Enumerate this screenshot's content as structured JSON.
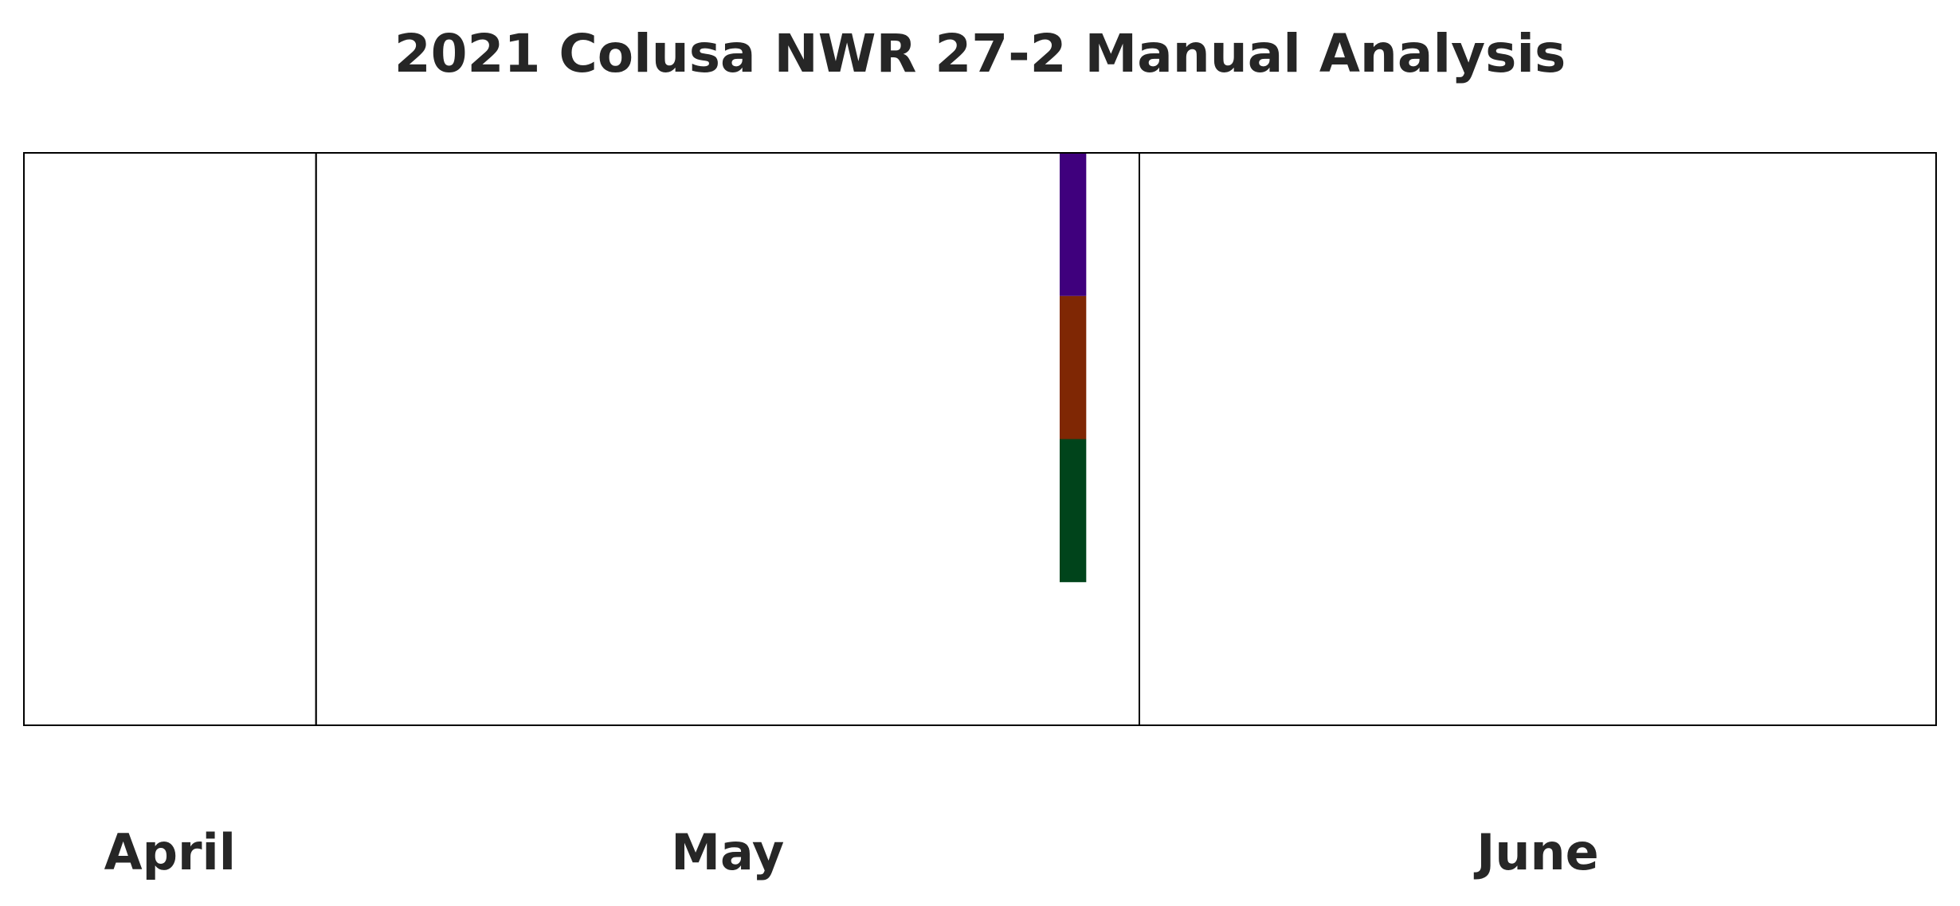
{
  "chart_data": {
    "type": "bar",
    "title": "2021 Colusa NWR 27-2 Manual Analysis",
    "x_axis": {
      "type": "date",
      "range": [
        "2021-04-20",
        "2021-06-30"
      ],
      "month_labels": [
        {
          "label": "April",
          "start": "2021-04-20",
          "end": "2021-04-30"
        },
        {
          "label": "May",
          "start": "2021-05-01",
          "end": "2021-05-31"
        },
        {
          "label": "June",
          "start": "2021-06-01",
          "end": "2021-06-30"
        }
      ]
    },
    "ylim": [
      0,
      4
    ],
    "grid": false,
    "legend": "none",
    "bars": [
      {
        "date": "2021-05-29",
        "segments": [
          {
            "value": 1,
            "color": "#3f007d"
          },
          {
            "value": 1,
            "color": "#7f2704"
          },
          {
            "value": 1,
            "color": "#00441b"
          }
        ]
      }
    ]
  }
}
